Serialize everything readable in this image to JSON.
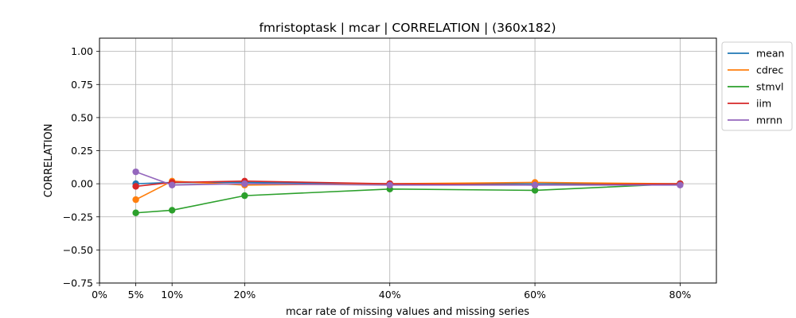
{
  "chart_data": {
    "type": "line",
    "title": "fmristoptask | mcar | CORRELATION | (360x182)",
    "xlabel": "mcar rate of missing values and missing series",
    "ylabel": "CORRELATION",
    "x": [
      5,
      10,
      20,
      40,
      60,
      80
    ],
    "xlim": [
      0,
      85
    ],
    "ylim": [
      -0.75,
      1.1
    ],
    "xticks": [
      0,
      5,
      10,
      20,
      40,
      60,
      80
    ],
    "xtick_labels": [
      "0%",
      "5%",
      "10%",
      "20%",
      "40%",
      "60%",
      "80%"
    ],
    "yticks": [
      -0.75,
      -0.5,
      -0.25,
      0.0,
      0.25,
      0.5,
      0.75,
      1.0
    ],
    "ytick_labels": [
      "−0.75",
      "−0.50",
      "−0.25",
      "0.00",
      "0.25",
      "0.50",
      "0.75",
      "1.00"
    ],
    "grid": true,
    "legend_position": "outside-right-top",
    "series": [
      {
        "name": "mean",
        "color": "#1f77b4",
        "values": [
          0.0,
          0.01,
          0.01,
          0.0,
          0.0,
          0.0
        ]
      },
      {
        "name": "cdrec",
        "color": "#ff7f0e",
        "values": [
          -0.12,
          0.02,
          -0.01,
          0.0,
          0.01,
          0.0
        ]
      },
      {
        "name": "stmvl",
        "color": "#2ca02c",
        "values": [
          -0.22,
          -0.2,
          -0.09,
          -0.04,
          -0.05,
          0.0
        ]
      },
      {
        "name": "iim",
        "color": "#d62728",
        "values": [
          -0.02,
          0.01,
          0.02,
          0.0,
          -0.01,
          0.0
        ]
      },
      {
        "name": "mrnn",
        "color": "#9467bd",
        "values": [
          0.09,
          -0.01,
          0.0,
          -0.01,
          -0.01,
          -0.01
        ]
      }
    ]
  }
}
